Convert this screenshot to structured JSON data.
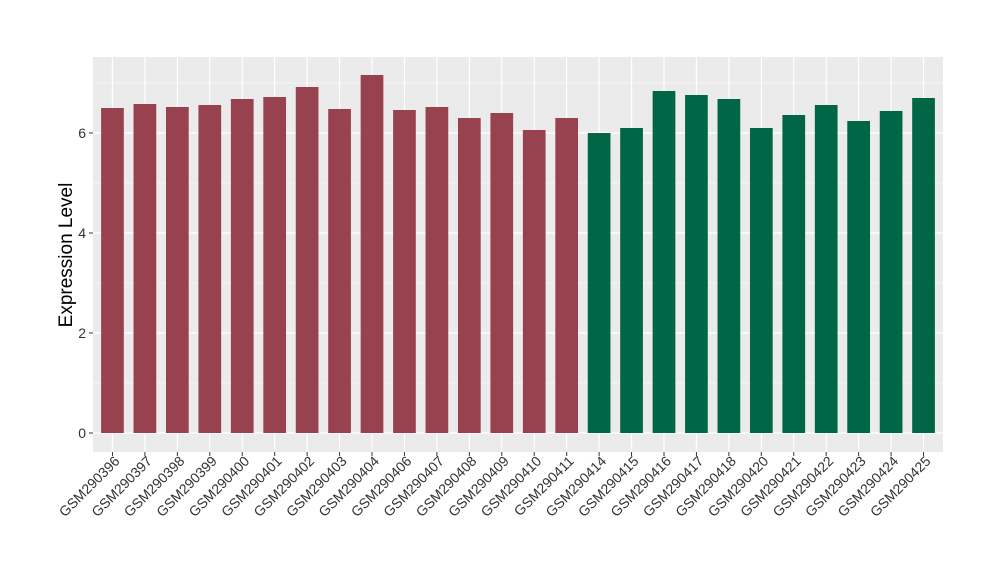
{
  "chart_data": {
    "type": "bar",
    "title": "",
    "xlabel": "",
    "ylabel": "Expression Level",
    "ylim": [
      -0.38,
      7.52
    ],
    "yticks": [
      0,
      2,
      4,
      6
    ],
    "grid": true,
    "legend": "none",
    "categories": [
      "GSM290396",
      "GSM290397",
      "GSM290398",
      "GSM290399",
      "GSM290400",
      "GSM290401",
      "GSM290402",
      "GSM290403",
      "GSM290404",
      "GSM290406",
      "GSM290407",
      "GSM290408",
      "GSM290409",
      "GSM290410",
      "GSM290411",
      "GSM290414",
      "GSM290415",
      "GSM290416",
      "GSM290417",
      "GSM290418",
      "GSM290420",
      "GSM290421",
      "GSM290422",
      "GSM290423",
      "GSM290424",
      "GSM290425"
    ],
    "values": [
      6.5,
      6.58,
      6.52,
      6.56,
      6.68,
      6.72,
      6.92,
      6.48,
      7.16,
      6.46,
      6.52,
      6.3,
      6.4,
      6.06,
      6.3,
      6.0,
      6.1,
      6.84,
      6.76,
      6.68,
      6.1,
      6.36,
      6.56,
      6.24,
      6.44,
      6.7
    ],
    "groups": [
      0,
      0,
      0,
      0,
      0,
      0,
      0,
      0,
      0,
      0,
      0,
      0,
      0,
      0,
      0,
      1,
      1,
      1,
      1,
      1,
      1,
      1,
      1,
      1,
      1,
      1
    ],
    "group_colors": [
      "#99424F",
      "#006645"
    ],
    "panel_background": "#EBEBEB",
    "grid_color": "#FFFFFF"
  }
}
